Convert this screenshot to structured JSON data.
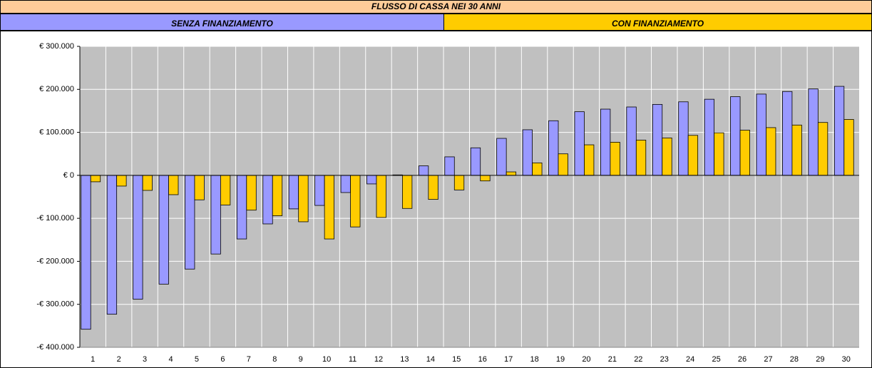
{
  "chart_data": {
    "type": "bar",
    "title": "FLUSSO DI CASSA NEI 30 ANNI",
    "categories": [
      "1",
      "2",
      "3",
      "4",
      "5",
      "6",
      "7",
      "8",
      "9",
      "10",
      "11",
      "12",
      "13",
      "14",
      "15",
      "16",
      "17",
      "18",
      "19",
      "20",
      "21",
      "22",
      "23",
      "24",
      "25",
      "26",
      "27",
      "28",
      "29",
      "30"
    ],
    "series": [
      {
        "name": "SENZA FINANZIAMENTO",
        "color": "#9999FF",
        "values": [
          -358000,
          -323000,
          -288000,
          -253000,
          -218000,
          -183000,
          -148000,
          -113000,
          -78000,
          -70000,
          -40000,
          -20000,
          1000,
          22000,
          43000,
          64000,
          86000,
          106000,
          127000,
          148000,
          154000,
          159000,
          165000,
          171000,
          177000,
          183000,
          189000,
          195000,
          201000,
          207000
        ]
      },
      {
        "name": "CON FINANZIAMENTO",
        "color": "#FFCC00",
        "values": [
          -15000,
          -25000,
          -35000,
          -45000,
          -57000,
          -69000,
          -81000,
          -94000,
          -108000,
          -148000,
          -120000,
          -98000,
          -77000,
          -56000,
          -34000,
          -13000,
          8000,
          29000,
          50000,
          71000,
          77000,
          82000,
          87000,
          93000,
          99000,
          105000,
          111000,
          117000,
          123000,
          130000
        ]
      }
    ],
    "ylim": [
      -400000,
      300000
    ],
    "yticks": [
      {
        "value": -400000,
        "label": "-€ 400.000"
      },
      {
        "value": -300000,
        "label": "-€ 300.000"
      },
      {
        "value": -200000,
        "label": "-€ 200.000"
      },
      {
        "value": -100000,
        "label": "-€ 100.000"
      },
      {
        "value": 0,
        "label": "€ 0"
      },
      {
        "value": 100000,
        "label": "€ 100.000"
      },
      {
        "value": 200000,
        "label": "€ 200.000"
      },
      {
        "value": 300000,
        "label": "€ 300.000"
      }
    ],
    "grid": true,
    "plot_background": "#C0C0C0"
  }
}
